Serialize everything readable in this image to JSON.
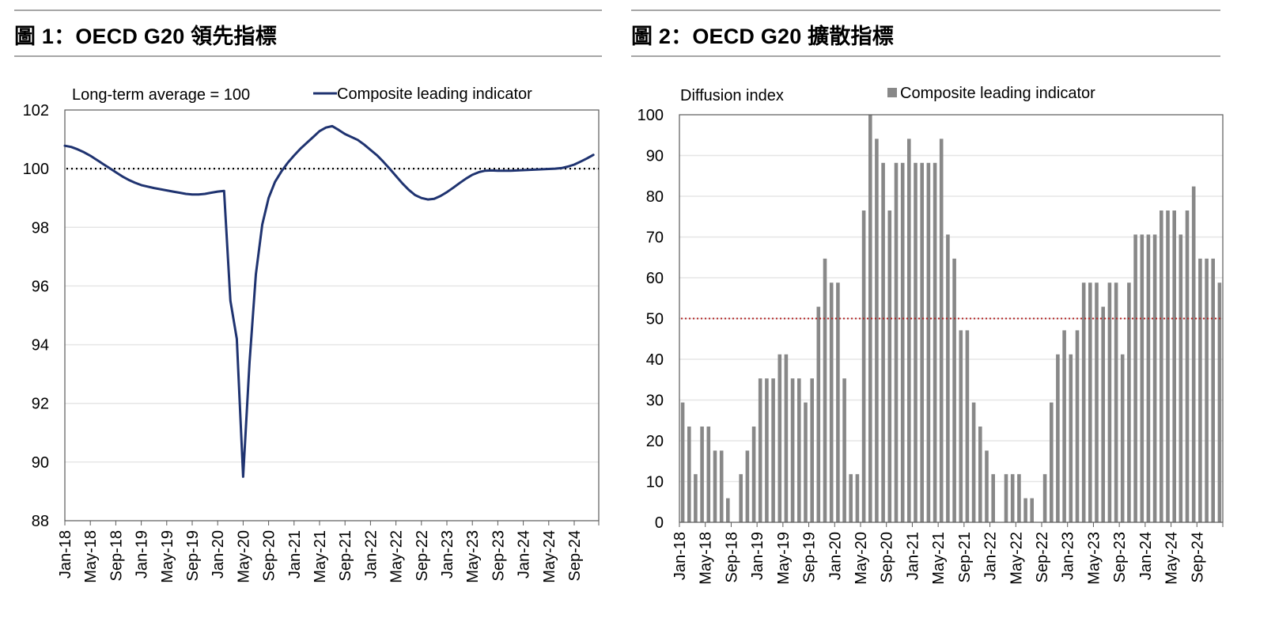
{
  "figures": [
    {
      "title": "圖 1：OECD G20 領先指標"
    },
    {
      "title": "圖 2：OECD G20 擴散指標"
    }
  ],
  "colors": {
    "line": "#1f3370",
    "bar": "#888888",
    "ref_line_1": "#000000",
    "ref_line_2": "#b22222",
    "grid": "#e6e6e6",
    "rule": "#a6a6a6"
  },
  "chart_data": [
    {
      "type": "line",
      "title": "圖 1：OECD G20 領先指標",
      "annotation": "Long-term average = 100",
      "legend": [
        "Composite leading indicator"
      ],
      "legend_position": "top-right",
      "ylim": [
        88,
        102
      ],
      "yticks": [
        88,
        90,
        92,
        94,
        96,
        98,
        100,
        102
      ],
      "reference_line": 100,
      "grid": true,
      "xtick_labels": [
        "Jan-18",
        "May-18",
        "Sep-18",
        "Jan-19",
        "May-19",
        "Sep-19",
        "Jan-20",
        "May-20",
        "Sep-20",
        "Jan-21",
        "May-21",
        "Sep-21",
        "Jan-22",
        "May-22",
        "Sep-22",
        "Jan-23",
        "May-23",
        "Sep-23",
        "Jan-24",
        "May-24",
        "Sep-24"
      ],
      "x_start": "Jan-18",
      "series": [
        {
          "name": "Composite leading indicator",
          "values": [
            100.78,
            100.74,
            100.66,
            100.56,
            100.44,
            100.3,
            100.16,
            100.02,
            99.88,
            99.74,
            99.62,
            99.52,
            99.44,
            99.39,
            99.34,
            99.3,
            99.26,
            99.22,
            99.18,
            99.14,
            99.12,
            99.12,
            99.14,
            99.18,
            99.22,
            99.24,
            95.5,
            94.2,
            89.5,
            93.4,
            96.4,
            98.1,
            99.0,
            99.55,
            99.9,
            100.2,
            100.45,
            100.68,
            100.88,
            101.08,
            101.28,
            101.4,
            101.45,
            101.32,
            101.18,
            101.08,
            100.98,
            100.82,
            100.64,
            100.46,
            100.24,
            100.0,
            99.75,
            99.5,
            99.28,
            99.1,
            99.0,
            98.95,
            98.97,
            99.07,
            99.2,
            99.35,
            99.51,
            99.66,
            99.79,
            99.88,
            99.93,
            99.94,
            99.93,
            99.93,
            99.93,
            99.94,
            99.95,
            99.96,
            99.97,
            99.98,
            99.99,
            100.0,
            100.02,
            100.07,
            100.14,
            100.24,
            100.35,
            100.47
          ]
        }
      ]
    },
    {
      "type": "bar",
      "title": "圖 2：OECD G20 擴散指標",
      "ylabel": "Diffusion index",
      "legend": [
        "Composite leading indicator"
      ],
      "legend_position": "top",
      "ylim": [
        0,
        100
      ],
      "yticks": [
        0,
        10,
        20,
        30,
        40,
        50,
        60,
        70,
        80,
        90,
        100
      ],
      "reference_line": 50,
      "grid": true,
      "xtick_labels": [
        "Jan-18",
        "May-18",
        "Sep-18",
        "Jan-19",
        "May-19",
        "Sep-19",
        "Jan-20",
        "May-20",
        "Sep-20",
        "Jan-21",
        "May-21",
        "Sep-21",
        "Jan-22",
        "May-22",
        "Sep-22",
        "Jan-23",
        "May-23",
        "Sep-23",
        "Jan-24",
        "May-24",
        "Sep-24"
      ],
      "x_start": "Jan-18",
      "series": [
        {
          "name": "Composite leading indicator",
          "values": [
            29.4,
            23.5,
            11.8,
            23.5,
            23.5,
            17.6,
            17.6,
            5.9,
            0,
            11.8,
            17.6,
            23.5,
            35.3,
            35.3,
            35.3,
            41.2,
            41.2,
            35.3,
            35.3,
            29.4,
            35.3,
            52.9,
            64.7,
            58.8,
            58.8,
            35.3,
            11.8,
            11.8,
            76.5,
            100,
            94.1,
            88.2,
            76.5,
            88.2,
            88.2,
            94.1,
            88.2,
            88.2,
            88.2,
            88.2,
            94.1,
            70.6,
            64.7,
            47.1,
            47.1,
            29.4,
            23.5,
            17.6,
            11.8,
            0,
            11.8,
            11.8,
            11.8,
            5.9,
            5.9,
            0,
            11.8,
            29.4,
            41.2,
            47.1,
            41.2,
            47.1,
            58.8,
            58.8,
            58.8,
            52.9,
            58.8,
            58.8,
            41.2,
            58.8,
            70.6,
            70.6,
            70.6,
            70.6,
            76.5,
            76.5,
            76.5,
            70.6,
            76.5,
            82.4,
            64.7,
            64.7,
            64.7,
            58.8
          ]
        }
      ]
    }
  ]
}
